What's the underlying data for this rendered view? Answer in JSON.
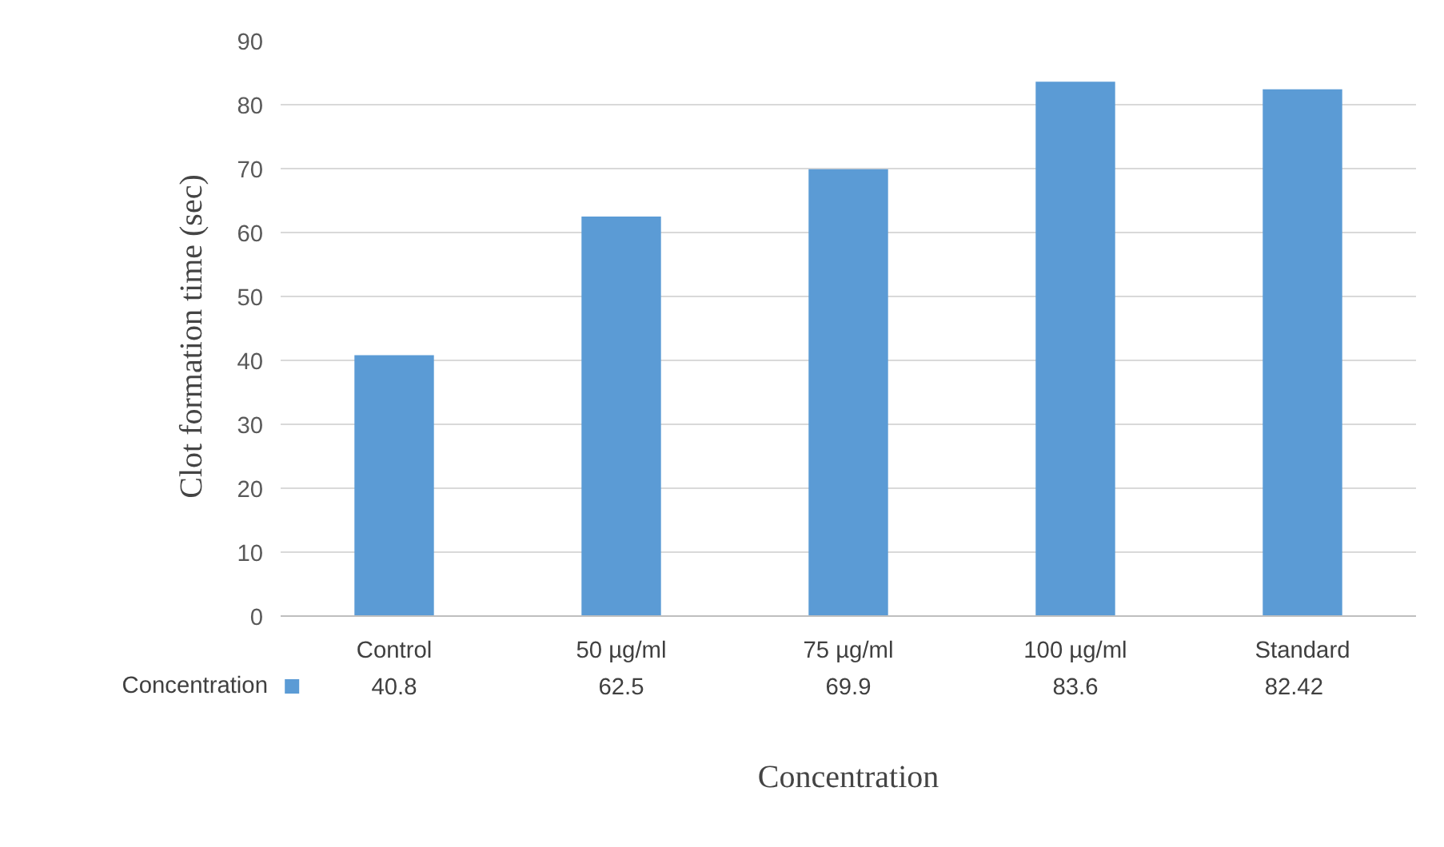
{
  "chart_data": {
    "type": "bar",
    "xlabel": "Concentration",
    "ylabel": "Clot formation  time  (sec)",
    "categories": [
      "Control",
      "50 µg/ml",
      "75 µg/ml",
      "100 µg/ml",
      "Standard"
    ],
    "series": [
      {
        "name": "Concentration",
        "color": "#5b9bd5",
        "values": [
          40.8,
          62.5,
          69.9,
          83.6,
          82.42
        ]
      }
    ],
    "ylim": [
      0,
      90
    ],
    "yticks": [
      0,
      10,
      20,
      30,
      40,
      50,
      60,
      70,
      80,
      90
    ],
    "grid": "y",
    "legend": "bottom left",
    "data_labels": true
  }
}
